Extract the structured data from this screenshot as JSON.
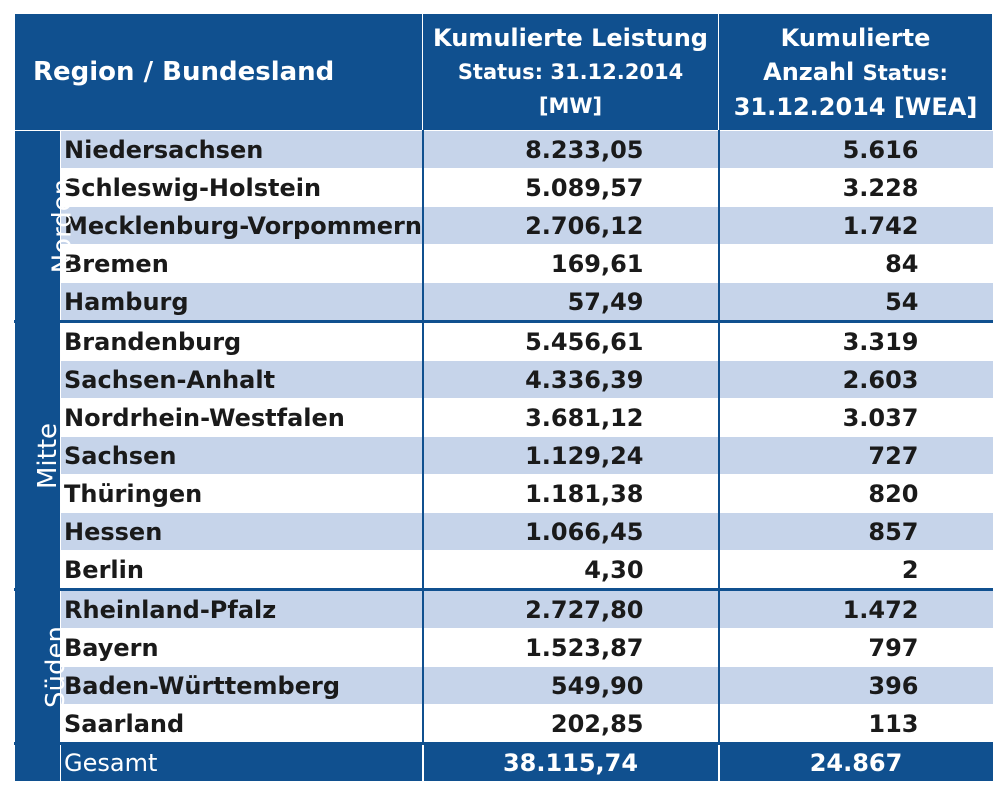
{
  "header": {
    "region_label": "Region / Bundesland",
    "mw_line1": "Kumulierte Leistung",
    "mw_line2": "Status: 31.12.2014",
    "mw_line3": "[MW]",
    "wea_line1": "Kumulierte",
    "wea_line2a": "Anzahl",
    "wea_line2b": "Status:",
    "wea_line3": "31.12.2014 [WEA]"
  },
  "groups": [
    {
      "region": "Norden",
      "rows": [
        {
          "name": "Niedersachsen",
          "mw": "8.233,05",
          "wea": "5.616"
        },
        {
          "name": "Schleswig-Holstein",
          "mw": "5.089,57",
          "wea": "3.228"
        },
        {
          "name": "Mecklenburg-Vorpommern",
          "mw": "2.706,12",
          "wea": "1.742"
        },
        {
          "name": "Bremen",
          "mw": "169,61",
          "wea": "84"
        },
        {
          "name": "Hamburg",
          "mw": "57,49",
          "wea": "54"
        }
      ]
    },
    {
      "region": "Mitte",
      "rows": [
        {
          "name": "Brandenburg",
          "mw": "5.456,61",
          "wea": "3.319"
        },
        {
          "name": "Sachsen-Anhalt",
          "mw": "4.336,39",
          "wea": "2.603"
        },
        {
          "name": "Nordrhein-Westfalen",
          "mw": "3.681,12",
          "wea": "3.037"
        },
        {
          "name": "Sachsen",
          "mw": "1.129,24",
          "wea": "727"
        },
        {
          "name": "Thüringen",
          "mw": "1.181,38",
          "wea": "820"
        },
        {
          "name": "Hessen",
          "mw": "1.066,45",
          "wea": "857"
        },
        {
          "name": "Berlin",
          "mw": "4,30",
          "wea": "2"
        }
      ]
    },
    {
      "region": "Süden",
      "rows": [
        {
          "name": "Rheinland-Pfalz",
          "mw": "2.727,80",
          "wea": "1.472"
        },
        {
          "name": "Bayern",
          "mw": "1.523,87",
          "wea": "797"
        },
        {
          "name": "Baden-Württemberg",
          "mw": "549,90",
          "wea": "396"
        },
        {
          "name": "Saarland",
          "mw": "202,85",
          "wea": "113"
        }
      ]
    }
  ],
  "total": {
    "name": "Gesamt",
    "mw": "38.115,74",
    "wea": "24.867"
  }
}
